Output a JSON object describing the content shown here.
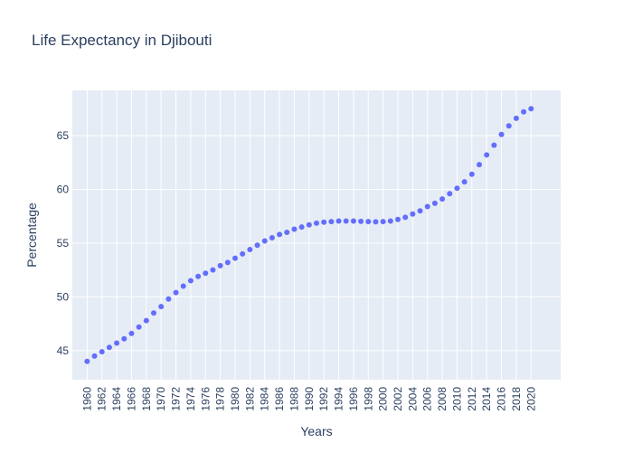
{
  "chart_data": {
    "type": "scatter",
    "title": "Life Expectancy in Djibouti",
    "xlabel": "Years",
    "ylabel": "Percentage",
    "x": [
      1960,
      1961,
      1962,
      1963,
      1964,
      1965,
      1966,
      1967,
      1968,
      1969,
      1970,
      1971,
      1972,
      1973,
      1974,
      1975,
      1976,
      1977,
      1978,
      1979,
      1980,
      1981,
      1982,
      1983,
      1984,
      1985,
      1986,
      1987,
      1988,
      1989,
      1990,
      1991,
      1992,
      1993,
      1994,
      1995,
      1996,
      1997,
      1998,
      1999,
      2000,
      2001,
      2002,
      2003,
      2004,
      2005,
      2006,
      2007,
      2008,
      2009,
      2010,
      2011,
      2012,
      2013,
      2014,
      2015,
      2016,
      2017,
      2018,
      2019,
      2020
    ],
    "y": [
      44.0,
      44.5,
      44.9,
      45.3,
      45.7,
      46.1,
      46.6,
      47.2,
      47.8,
      48.5,
      49.1,
      49.8,
      50.4,
      51.0,
      51.5,
      51.9,
      52.2,
      52.5,
      52.9,
      53.2,
      53.6,
      54.0,
      54.4,
      54.8,
      55.2,
      55.5,
      55.8,
      56.0,
      56.3,
      56.5,
      56.7,
      56.85,
      56.95,
      57.0,
      57.05,
      57.05,
      57.05,
      57.02,
      57.0,
      56.98,
      57.0,
      57.05,
      57.2,
      57.4,
      57.7,
      58.0,
      58.4,
      58.7,
      59.1,
      59.6,
      60.1,
      60.7,
      61.4,
      62.3,
      63.2,
      64.1,
      65.1,
      65.9,
      66.6,
      67.2,
      67.5
    ],
    "x_ticks": [
      "1960",
      "1962",
      "1964",
      "1966",
      "1968",
      "1970",
      "1972",
      "1974",
      "1976",
      "1978",
      "1980",
      "1982",
      "1984",
      "1986",
      "1988",
      "1990",
      "1992",
      "1994",
      "1996",
      "1998",
      "2000",
      "2002",
      "2004",
      "2006",
      "2008",
      "2010",
      "2012",
      "2014",
      "2016",
      "2018",
      "2020"
    ],
    "y_ticks": [
      "45",
      "50",
      "55",
      "60",
      "65"
    ],
    "xlim": [
      1958,
      2024
    ],
    "ylim": [
      42.3,
      69.2
    ],
    "grid": true,
    "legend": "none",
    "colors": {
      "marker": "#636efa",
      "plot_bg": "#e5ecf6",
      "grid": "#ffffff",
      "text": "#2a3f5f"
    }
  }
}
